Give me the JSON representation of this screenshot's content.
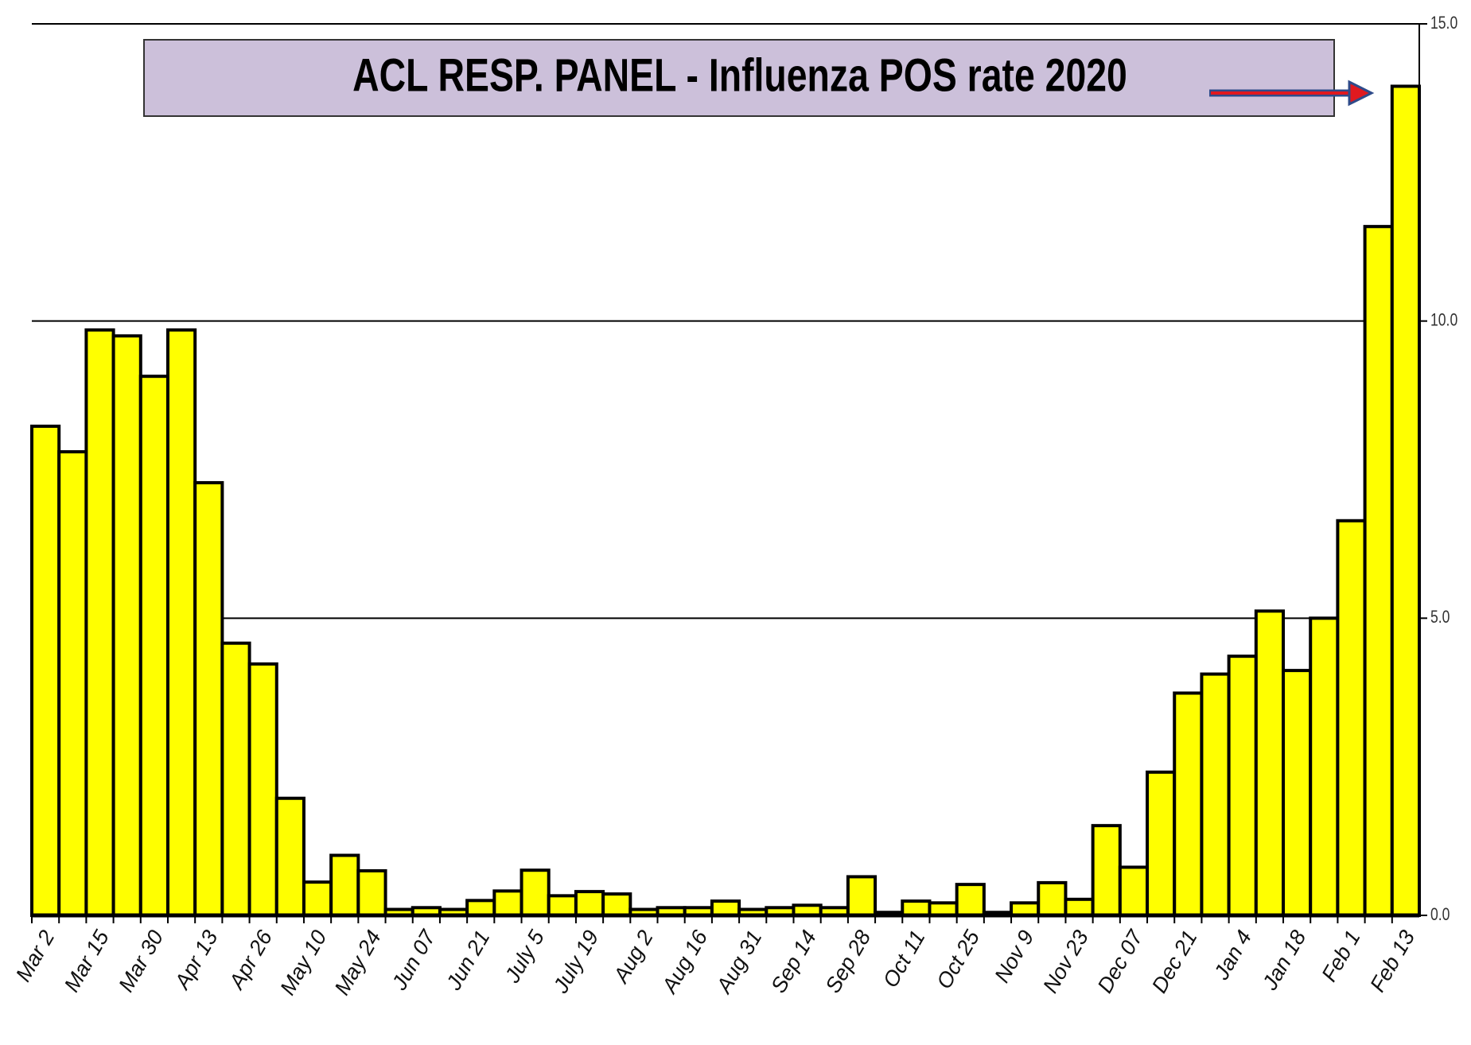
{
  "chart_data": {
    "type": "bar",
    "title": "ACL RESP. PANEL -  Influenza POS rate  2020",
    "categories": [
      "Mar 2",
      null,
      "Mar 15",
      null,
      "Mar 30",
      null,
      "Apr 13",
      null,
      "Apr 26",
      null,
      "May 10",
      null,
      "May 24",
      null,
      "Jun 07",
      null,
      "Jun 21",
      null,
      "July 5",
      null,
      "July 19",
      null,
      "Aug 2",
      null,
      "Aug 16",
      null,
      "Aug 31",
      null,
      "Sep 14",
      null,
      "Sep 28",
      null,
      "Oct 11",
      null,
      "Oct 25",
      null,
      "Nov 9",
      null,
      "Nov 23",
      null,
      "Dec 07",
      null,
      "Dec 21",
      null,
      "Jan 4",
      null,
      "Jan 18",
      null,
      "Feb 1",
      null,
      "Feb 13"
    ],
    "values": [
      8.23,
      7.8,
      9.85,
      9.75,
      9.07,
      9.85,
      7.28,
      4.58,
      4.23,
      1.97,
      0.56,
      1.01,
      0.75,
      0.1,
      0.13,
      0.1,
      0.25,
      0.41,
      0.76,
      0.33,
      0.4,
      0.36,
      0.1,
      0.13,
      0.13,
      0.24,
      0.1,
      0.13,
      0.17,
      0.13,
      0.65,
      0.05,
      0.24,
      0.21,
      0.52,
      0.05,
      0.21,
      0.55,
      0.27,
      1.51,
      0.81,
      2.41,
      3.74,
      4.06,
      4.36,
      5.12,
      4.12,
      5.0,
      6.64,
      11.59,
      13.95
    ],
    "color": "#ffff00",
    "ylim": [
      0,
      15
    ],
    "yticks": [
      {
        "value": 0,
        "label": "0.0"
      },
      {
        "value": 5,
        "label": "5.0"
      },
      {
        "value": 10,
        "label": "10.0"
      },
      {
        "value": 15,
        "label": "15.0"
      }
    ],
    "grid": true
  }
}
